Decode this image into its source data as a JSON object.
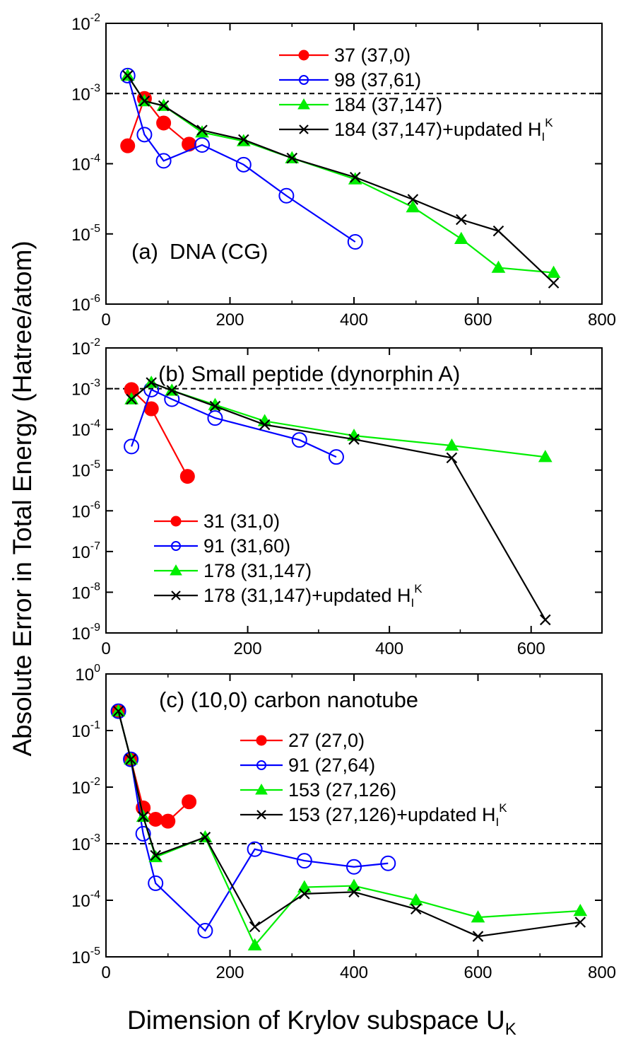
{
  "figure": {
    "ylabel": "Absolute Error in Total Energy (Hatree/atom)",
    "xlabel": "Dimension of Krylov subspace U",
    "xlabel_sub": "K"
  },
  "colors": {
    "red": "#ff0000",
    "blue": "#0000ff",
    "green": "#00ee00",
    "black": "#000000",
    "threshold": "#000000"
  },
  "chart_data": [
    {
      "id": "a",
      "type": "line",
      "yscale": "log",
      "title": "(a)",
      "title2": "DNA (CG)",
      "xlim": [
        0,
        800
      ],
      "ylim": [
        1e-06,
        0.01
      ],
      "xticks": [
        0,
        200,
        400,
        600,
        800
      ],
      "xticklabels": [
        "0",
        "200",
        "400",
        "600",
        "800"
      ],
      "yticks": [
        1e-06,
        1e-05,
        0.0001,
        0.001,
        0.01
      ],
      "yticklabels": [
        [
          "10",
          "-6"
        ],
        [
          "10",
          "-5"
        ],
        [
          "10",
          "-4"
        ],
        [
          "10",
          "-3"
        ],
        [
          "10",
          "-2"
        ]
      ],
      "threshold": 0.001,
      "legend_position": "top-right",
      "series": [
        {
          "name": "37 (37,0)",
          "color_key": "red",
          "marker": "filled-circle",
          "x": [
            35,
            62,
            93,
            134
          ],
          "y": [
            0.00018,
            0.00085,
            0.00038,
            0.00019
          ]
        },
        {
          "name": "98 (37,61)",
          "color_key": "blue",
          "marker": "open-circle",
          "x": [
            35,
            62,
            93,
            155,
            222,
            291,
            402
          ],
          "y": [
            0.0018,
            0.00026,
            0.00011,
            0.000185,
            9.7e-05,
            3.5e-05,
            7.7e-06
          ]
        },
        {
          "name": "184 (37,147)",
          "color_key": "green",
          "marker": "filled-triangle",
          "x": [
            35,
            62,
            93,
            155,
            222,
            300,
            402,
            495,
            573,
            633,
            722
          ],
          "y": [
            0.0018,
            0.00078,
            0.00067,
            0.00028,
            0.00021,
            0.00012,
            6e-05,
            2.4e-05,
            8.5e-06,
            3.3e-06,
            2.8e-06
          ]
        },
        {
          "name": "184 (37,147)+updated H",
          "sup": "K",
          "sub": "I",
          "color_key": "black",
          "marker": "x",
          "x": [
            35,
            62,
            93,
            155,
            222,
            300,
            402,
            495,
            573,
            633,
            722
          ],
          "y": [
            0.0018,
            0.00078,
            0.00067,
            0.0003,
            0.00022,
            0.00012,
            6.4e-05,
            3.1e-05,
            1.6e-05,
            1.1e-05,
            2e-06
          ]
        }
      ]
    },
    {
      "id": "b",
      "type": "line",
      "yscale": "log",
      "title": "(b) Small peptide (dynorphin A)",
      "xlim": [
        0,
        700
      ],
      "ylim": [
        1e-09,
        0.01
      ],
      "xticks": [
        0,
        200,
        400,
        600
      ],
      "xticklabels": [
        "0",
        "200",
        "400",
        "600"
      ],
      "yticks": [
        1e-09,
        1e-08,
        1e-07,
        1e-06,
        1e-05,
        0.0001,
        0.001,
        0.01
      ],
      "yticklabels": [
        [
          "10",
          "-9"
        ],
        [
          "10",
          "-8"
        ],
        [
          "10",
          "-7"
        ],
        [
          "10",
          "-6"
        ],
        [
          "10",
          "-5"
        ],
        [
          "10",
          "-4"
        ],
        [
          "10",
          "-3"
        ],
        [
          "10",
          "-2"
        ]
      ],
      "threshold": 0.001,
      "legend_position": "bottom-left",
      "series": [
        {
          "name": "31 (31,0)",
          "color_key": "red",
          "marker": "filled-circle",
          "x": [
            36,
            64,
            115
          ],
          "y": [
            0.00095,
            0.00032,
            7e-06
          ]
        },
        {
          "name": "91 (31,60)",
          "color_key": "blue",
          "marker": "open-circle",
          "x": [
            36,
            64,
            93,
            154,
            273,
            325
          ],
          "y": [
            3.8e-05,
            0.00095,
            0.00055,
            0.00019,
            5.5e-05,
            2.1e-05
          ]
        },
        {
          "name": "178 (31,147)",
          "color_key": "green",
          "marker": "filled-triangle",
          "x": [
            36,
            64,
            93,
            154,
            224,
            350,
            488,
            620
          ],
          "y": [
            0.00055,
            0.0014,
            0.0009,
            0.0004,
            0.00016,
            7e-05,
            4e-05,
            2.1e-05
          ]
        },
        {
          "name": "178 (31,147)+updated H",
          "sup": "K",
          "sub": "I",
          "color_key": "black",
          "marker": "x",
          "x": [
            36,
            64,
            93,
            154,
            224,
            350,
            488,
            620
          ],
          "y": [
            0.00055,
            0.0014,
            0.0009,
            0.00037,
            0.00013,
            5.7e-05,
            2e-05,
            2.1e-09
          ]
        }
      ]
    },
    {
      "id": "c",
      "type": "line",
      "yscale": "log",
      "title": "(c) (10,0) carbon nanotube",
      "xlim": [
        0,
        800
      ],
      "ylim": [
        1e-05,
        1
      ],
      "xticks": [
        0,
        200,
        400,
        600,
        800
      ],
      "xticklabels": [
        "0",
        "200",
        "400",
        "600",
        "800"
      ],
      "yticks": [
        1e-05,
        0.0001,
        0.001,
        0.01,
        0.1,
        1
      ],
      "yticklabels": [
        [
          "10",
          "-5"
        ],
        [
          "10",
          "-4"
        ],
        [
          "10",
          "-3"
        ],
        [
          "10",
          "-2"
        ],
        [
          "10",
          "-1"
        ],
        [
          "10",
          "0"
        ]
      ],
      "threshold": 0.001,
      "legend_position": "top-right",
      "series": [
        {
          "name": "27 (27,0)",
          "color_key": "red",
          "marker": "filled-circle",
          "x": [
            20,
            40,
            60,
            80,
            100,
            134
          ],
          "y": [
            0.22,
            0.031,
            0.0043,
            0.0027,
            0.0025,
            0.0055
          ]
        },
        {
          "name": "91 (27,64)",
          "color_key": "blue",
          "marker": "open-circle",
          "x": [
            20,
            40,
            60,
            80,
            160,
            240,
            320,
            400,
            455
          ],
          "y": [
            0.22,
            0.031,
            0.0015,
            0.0002,
            2.9e-05,
            0.0008,
            0.0005,
            0.00039,
            0.00045
          ]
        },
        {
          "name": "153 (27,126)",
          "color_key": "green",
          "marker": "filled-triangle",
          "x": [
            20,
            40,
            60,
            80,
            160,
            240,
            320,
            400,
            500,
            600,
            765
          ],
          "y": [
            0.22,
            0.031,
            0.003,
            0.00058,
            0.0013,
            1.6e-05,
            0.00017,
            0.00018,
            0.0001,
            5e-05,
            6.5e-05
          ]
        },
        {
          "name": "153 (27,126)+updated H",
          "sup": "K",
          "sub": "I",
          "color_key": "black",
          "marker": "x",
          "x": [
            20,
            40,
            60,
            80,
            160,
            240,
            320,
            400,
            500,
            600,
            765
          ],
          "y": [
            0.22,
            0.031,
            0.003,
            0.00062,
            0.0013,
            3.4e-05,
            0.00013,
            0.00014,
            7e-05,
            2.3e-05,
            4.1e-05
          ]
        }
      ]
    }
  ]
}
